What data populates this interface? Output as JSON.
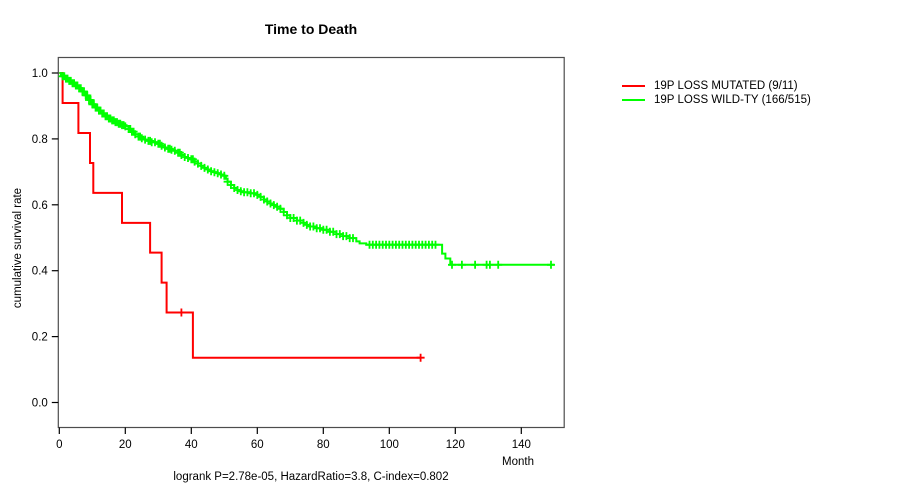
{
  "chart_data": {
    "type": "line",
    "subtype": "kaplan-meier-step",
    "title": "Time to Death",
    "xlabel": "Month",
    "ylabel": "cumulative survival rate",
    "footnote": "logrank P=2.78e-05, HazardRatio=3.8, C-index=0.802",
    "xlim": [
      0,
      153
    ],
    "ylim": [
      0,
      1.0
    ],
    "x_ticks": [
      0,
      20,
      40,
      60,
      80,
      100,
      120,
      140
    ],
    "y_ticks": [
      0.0,
      0.2,
      0.4,
      0.6,
      0.8,
      1.0
    ],
    "grid": false,
    "legend_position": "right-outside",
    "frame_color": "#4d4d4d",
    "series": [
      {
        "name": "19P LOSS MUTATED (9/11)",
        "color": "#FF0000",
        "end_month": 109.5,
        "steps": [
          [
            0,
            1.0
          ],
          [
            1,
            0.909
          ],
          [
            5.8,
            0.818
          ],
          [
            9.3,
            0.727
          ],
          [
            10.3,
            0.636
          ],
          [
            19,
            0.545
          ],
          [
            27.5,
            0.455
          ],
          [
            31,
            0.364
          ],
          [
            32.5,
            0.273
          ],
          [
            40.5,
            0.136
          ]
        ],
        "censor_months": [
          37,
          109.5
        ]
      },
      {
        "name": "19P LOSS WILD-TY (166/515)",
        "color": "#00FF00",
        "end_month": 150,
        "steps": [
          [
            0,
            1.0
          ],
          [
            0.5,
            0.995
          ],
          [
            1,
            0.99
          ],
          [
            2,
            0.983
          ],
          [
            3,
            0.976
          ],
          [
            4,
            0.969
          ],
          [
            5,
            0.962
          ],
          [
            6,
            0.954
          ],
          [
            7,
            0.944
          ],
          [
            8,
            0.932
          ],
          [
            9,
            0.918
          ],
          [
            10,
            0.905
          ],
          [
            11,
            0.895
          ],
          [
            12,
            0.886
          ],
          [
            13,
            0.877
          ],
          [
            14,
            0.869
          ],
          [
            15,
            0.862
          ],
          [
            16,
            0.856
          ],
          [
            17,
            0.851
          ],
          [
            18,
            0.846
          ],
          [
            19,
            0.842
          ],
          [
            20,
            0.838
          ],
          [
            21,
            0.83
          ],
          [
            22,
            0.822
          ],
          [
            23,
            0.814
          ],
          [
            24,
            0.807
          ],
          [
            25,
            0.802
          ],
          [
            26,
            0.798
          ],
          [
            27,
            0.794
          ],
          [
            28,
            0.79
          ],
          [
            30,
            0.785
          ],
          [
            31,
            0.779
          ],
          [
            32,
            0.774
          ],
          [
            33,
            0.77
          ],
          [
            34,
            0.767
          ],
          [
            35,
            0.764
          ],
          [
            36,
            0.758
          ],
          [
            37,
            0.751
          ],
          [
            38,
            0.745
          ],
          [
            39,
            0.742
          ],
          [
            40,
            0.738
          ],
          [
            41,
            0.731
          ],
          [
            42,
            0.725
          ],
          [
            43,
            0.718
          ],
          [
            44,
            0.712
          ],
          [
            45,
            0.707
          ],
          [
            46,
            0.702
          ],
          [
            47,
            0.699
          ],
          [
            48,
            0.696
          ],
          [
            49,
            0.692
          ],
          [
            50,
            0.688
          ],
          [
            50.5,
            0.679
          ],
          [
            51,
            0.67
          ],
          [
            52,
            0.66
          ],
          [
            53,
            0.651
          ],
          [
            54,
            0.645
          ],
          [
            55,
            0.641
          ],
          [
            56,
            0.638
          ],
          [
            58,
            0.635
          ],
          [
            60,
            0.63
          ],
          [
            61,
            0.624
          ],
          [
            62,
            0.616
          ],
          [
            63,
            0.61
          ],
          [
            64,
            0.604
          ],
          [
            65,
            0.599
          ],
          [
            66,
            0.594
          ],
          [
            67,
            0.588
          ],
          [
            68,
            0.578
          ],
          [
            69,
            0.568
          ],
          [
            70,
            0.56
          ],
          [
            72,
            0.552
          ],
          [
            74,
            0.545
          ],
          [
            75,
            0.539
          ],
          [
            76,
            0.534
          ],
          [
            78,
            0.529
          ],
          [
            80,
            0.524
          ],
          [
            82,
            0.518
          ],
          [
            84,
            0.511
          ],
          [
            86,
            0.505
          ],
          [
            88,
            0.499
          ],
          [
            90,
            0.489
          ],
          [
            91,
            0.483
          ],
          [
            93,
            0.479
          ],
          [
            116,
            0.452
          ],
          [
            117,
            0.437
          ],
          [
            118.5,
            0.418
          ]
        ],
        "censor_months": [
          1,
          1.5,
          2,
          2.5,
          3,
          3.5,
          4,
          4.5,
          5,
          5.5,
          6,
          6.5,
          7,
          7.5,
          8,
          8.5,
          9,
          9.5,
          10,
          10.5,
          11,
          11.5,
          12,
          12.5,
          13,
          13.5,
          14,
          14.5,
          15,
          15.5,
          16,
          16.5,
          17,
          17.5,
          18,
          18.5,
          19,
          19.5,
          20,
          21,
          21.5,
          22,
          22.5,
          23,
          24,
          24.5,
          25,
          26,
          27,
          27.5,
          28,
          29,
          30,
          30.5,
          31,
          32,
          33,
          33.5,
          34,
          35,
          36,
          36.5,
          37,
          38,
          39,
          40,
          40.5,
          41,
          42,
          43,
          44,
          45,
          46,
          47,
          48,
          49,
          50,
          51,
          52,
          53,
          54,
          55,
          56,
          57,
          58,
          59,
          60,
          61,
          62,
          63,
          64,
          65,
          66,
          67,
          68,
          69,
          70,
          71,
          72,
          73,
          74,
          75,
          76,
          77,
          78,
          79,
          80,
          81,
          82,
          83,
          84,
          85,
          86,
          87,
          88,
          89,
          94,
          95,
          96,
          97,
          98,
          99,
          100,
          101,
          102,
          103,
          104,
          105,
          106,
          107,
          108,
          109,
          110,
          111,
          112,
          113,
          114,
          119,
          122,
          126,
          129.5,
          130.5,
          133,
          149
        ]
      }
    ]
  }
}
